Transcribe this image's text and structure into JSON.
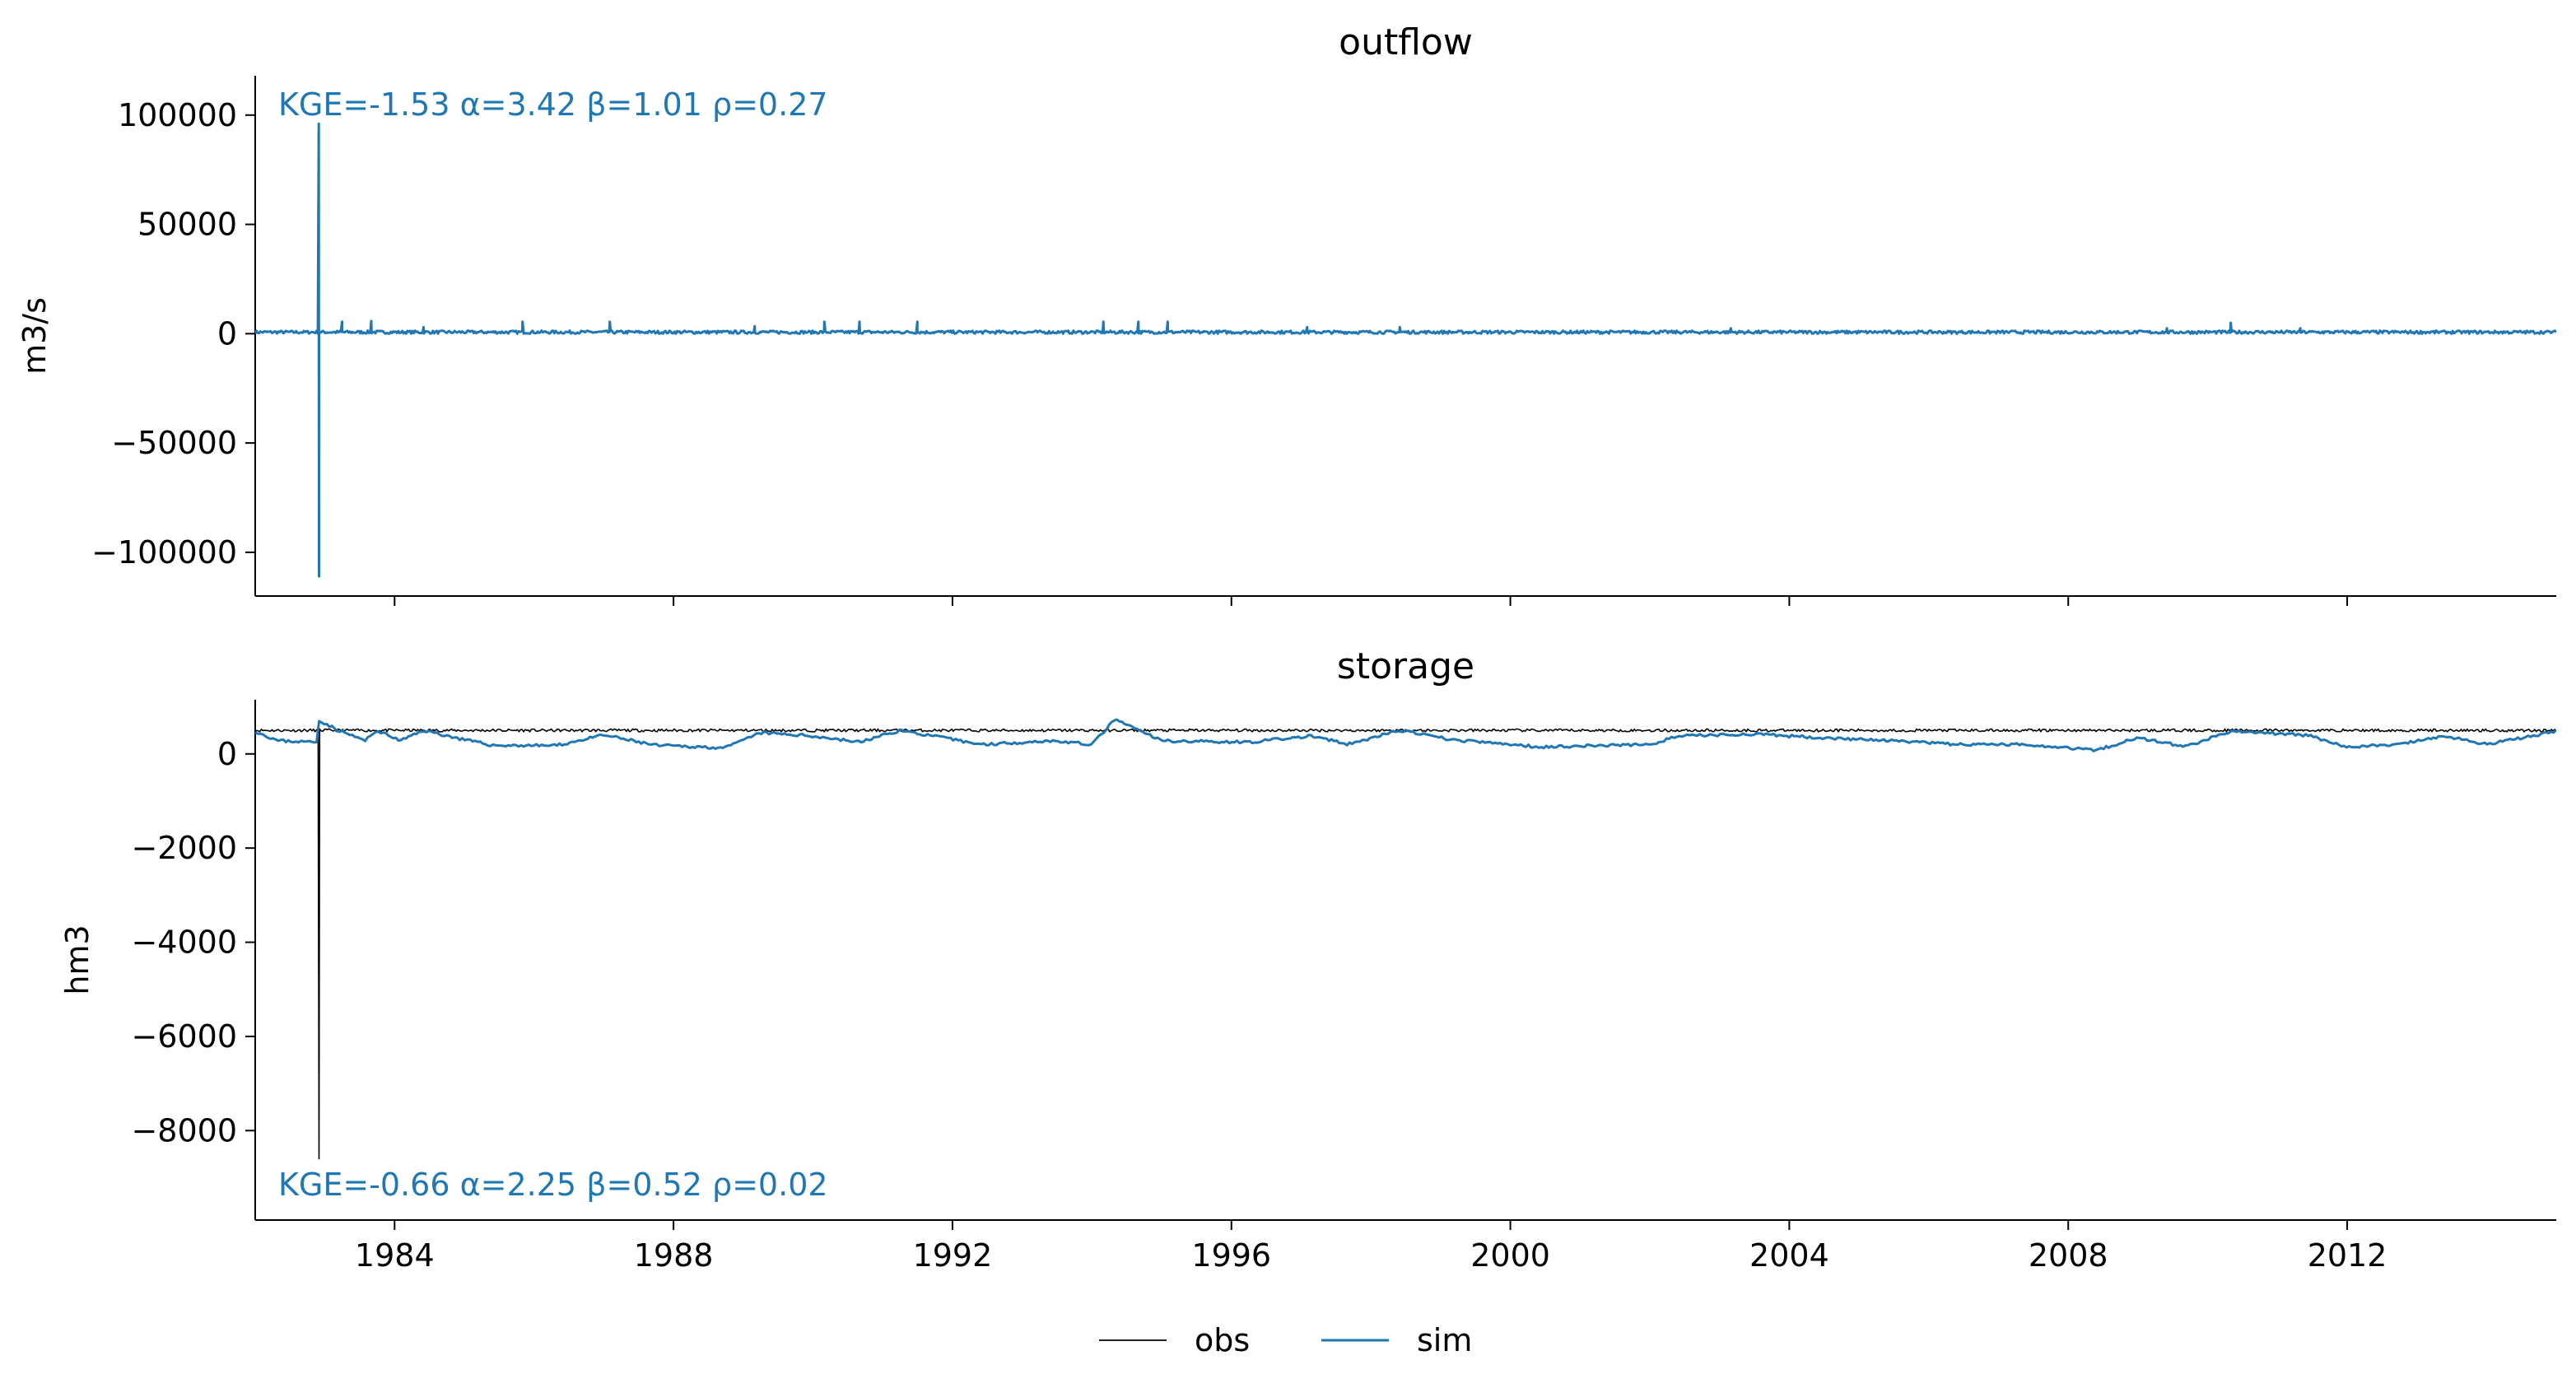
{
  "colors": {
    "obs": "#000000",
    "sim": "#1f77b4"
  },
  "legend": {
    "placement": "bottom-center",
    "entries": [
      "obs",
      "sim"
    ]
  },
  "chart_data": [
    {
      "type": "line",
      "title": "outflow",
      "xlabel": "",
      "ylabel": "m3/s",
      "xlim": [
        "1982-01-01",
        "2014-12-31"
      ],
      "ylim": [
        -120000,
        118000
      ],
      "yticks": [
        100000,
        50000,
        0,
        -50000,
        -100000
      ],
      "ytick_labels": [
        "100000",
        "50000",
        "0",
        "−50000",
        "−100000"
      ],
      "xticks": [
        "1984-01-01",
        "1988-01-01",
        "1992-01-01",
        "1996-01-01",
        "2000-01-01",
        "2004-01-01",
        "2008-01-01",
        "2012-01-01"
      ],
      "xtick_labels": [],
      "grid": false,
      "annotation": "KGE=-1.53  α=3.42  β=1.01  ρ=0.27",
      "annotation_position": "top-left",
      "series": [
        {
          "name": "sim",
          "color": "#1f77b4",
          "base": 700,
          "points": [
            {
              "x": "1982-01-01",
              "y": 1100
            },
            {
              "x": "1982-06-01",
              "y": 700
            },
            {
              "x": "1982-10-01",
              "y": 900
            },
            {
              "x": "1982-11-30",
              "y": 96000
            },
            {
              "x": "1982-12-01",
              "y": -111000
            },
            {
              "x": "1982-12-03",
              "y": 1200
            },
            {
              "x": "1983-04-01",
              "y": 5500
            },
            {
              "x": "1983-09-01",
              "y": 5800
            },
            {
              "x": "1984-06-01",
              "y": 3000
            },
            {
              "x": "1985-11-01",
              "y": 5500
            },
            {
              "x": "1987-02-01",
              "y": 5500
            },
            {
              "x": "1989-03-01",
              "y": 3500
            },
            {
              "x": "1990-03-01",
              "y": 5500
            },
            {
              "x": "1990-09-01",
              "y": 5500
            },
            {
              "x": "1991-07-01",
              "y": 5500
            },
            {
              "x": "1994-03-01",
              "y": 5500
            },
            {
              "x": "1994-09-01",
              "y": 5500
            },
            {
              "x": "1995-02-01",
              "y": 5500
            },
            {
              "x": "1997-02-01",
              "y": 3000
            },
            {
              "x": "1998-06-01",
              "y": 3000
            },
            {
              "x": "2003-03-01",
              "y": 2500
            },
            {
              "x": "2009-06-01",
              "y": 2500
            },
            {
              "x": "2010-05-01",
              "y": 5000
            },
            {
              "x": "2011-05-01",
              "y": 2500
            },
            {
              "x": "2014-12-31",
              "y": 1200
            }
          ]
        }
      ]
    },
    {
      "type": "line",
      "title": "storage",
      "xlabel": "",
      "ylabel": "hm3",
      "xlim": [
        "1982-01-01",
        "2014-12-31"
      ],
      "ylim": [
        -9900,
        1150
      ],
      "yticks": [
        0,
        -2000,
        -4000,
        -6000,
        -8000
      ],
      "ytick_labels": [
        "0",
        "−2000",
        "−4000",
        "−6000",
        "−8000"
      ],
      "xticks": [
        "1984-01-01",
        "1988-01-01",
        "1992-01-01",
        "1996-01-01",
        "2000-01-01",
        "2004-01-01",
        "2008-01-01",
        "2012-01-01"
      ],
      "xtick_labels": [
        "1984",
        "1988",
        "1992",
        "1996",
        "2000",
        "2004",
        "2008",
        "2012"
      ],
      "grid": false,
      "annotation": "KGE=-0.66  α=2.25  β=0.52  ρ=0.02",
      "annotation_position": "bottom-left",
      "series": [
        {
          "name": "obs",
          "color": "#000000",
          "points": [
            {
              "x": "1982-01-01",
              "y": 500
            },
            {
              "x": "1982-11-30",
              "y": 500
            },
            {
              "x": "1982-12-01",
              "y": -8600
            },
            {
              "x": "1982-12-02",
              "y": 500
            },
            {
              "x": "2014-12-31",
              "y": 520
            }
          ]
        },
        {
          "name": "sim",
          "color": "#1f77b4",
          "points": [
            {
              "x": "1982-01-01",
              "y": 480
            },
            {
              "x": "1982-05-01",
              "y": 280
            },
            {
              "x": "1982-11-25",
              "y": 250
            },
            {
              "x": "1982-12-01",
              "y": 720
            },
            {
              "x": "1983-03-01",
              "y": 520
            },
            {
              "x": "1983-08-01",
              "y": 280
            },
            {
              "x": "1983-10-01",
              "y": 500
            },
            {
              "x": "1984-02-01",
              "y": 280
            },
            {
              "x": "1984-06-01",
              "y": 500
            },
            {
              "x": "1985-01-01",
              "y": 300
            },
            {
              "x": "1985-06-01",
              "y": 180
            },
            {
              "x": "1986-05-01",
              "y": 180
            },
            {
              "x": "1987-01-01",
              "y": 400
            },
            {
              "x": "1987-10-01",
              "y": 180
            },
            {
              "x": "1988-10-01",
              "y": 130
            },
            {
              "x": "1989-04-01",
              "y": 450
            },
            {
              "x": "1990-01-01",
              "y": 380
            },
            {
              "x": "1990-09-01",
              "y": 250
            },
            {
              "x": "1991-04-01",
              "y": 500
            },
            {
              "x": "1992-06-01",
              "y": 200
            },
            {
              "x": "1993-06-01",
              "y": 280
            },
            {
              "x": "1994-01-01",
              "y": 200
            },
            {
              "x": "1994-05-01",
              "y": 730
            },
            {
              "x": "1995-01-01",
              "y": 280
            },
            {
              "x": "1996-04-01",
              "y": 250
            },
            {
              "x": "1997-03-01",
              "y": 380
            },
            {
              "x": "1997-09-01",
              "y": 200
            },
            {
              "x": "1998-06-01",
              "y": 500
            },
            {
              "x": "1999-03-01",
              "y": 300
            },
            {
              "x": "2000-06-01",
              "y": 150
            },
            {
              "x": "2002-01-01",
              "y": 200
            },
            {
              "x": "2002-06-01",
              "y": 380
            },
            {
              "x": "2003-06-01",
              "y": 420
            },
            {
              "x": "2004-06-01",
              "y": 350
            },
            {
              "x": "2005-06-01",
              "y": 280
            },
            {
              "x": "2006-06-01",
              "y": 200
            },
            {
              "x": "2007-06-01",
              "y": 200
            },
            {
              "x": "2008-06-01",
              "y": 80
            },
            {
              "x": "2009-01-01",
              "y": 350
            },
            {
              "x": "2009-09-01",
              "y": 150
            },
            {
              "x": "2010-05-01",
              "y": 480
            },
            {
              "x": "2011-06-01",
              "y": 400
            },
            {
              "x": "2012-01-01",
              "y": 150
            },
            {
              "x": "2012-10-01",
              "y": 200
            },
            {
              "x": "2013-06-01",
              "y": 380
            },
            {
              "x": "2014-01-01",
              "y": 200
            },
            {
              "x": "2014-12-31",
              "y": 480
            }
          ]
        }
      ]
    }
  ]
}
